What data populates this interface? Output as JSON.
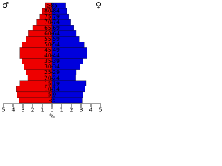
{
  "chart_data": {
    "type": "pyramid",
    "x_label": "%",
    "categories": [
      "≥85",
      "80-84",
      "75-79",
      "70-74",
      "65-69",
      "60-64",
      "55-59",
      "50-54",
      "45-49",
      "40-44",
      "35-39",
      "30-34",
      "25-29",
      "20-24",
      "15-19",
      "10-14",
      "5-9",
      "<5"
    ],
    "series": [
      {
        "name": "♂",
        "color": "#ee0000",
        "values": [
          0.7,
          1.0,
          1.3,
          1.6,
          2.0,
          2.4,
          2.7,
          3.1,
          3.3,
          3.3,
          3.1,
          2.9,
          2.7,
          2.5,
          3.3,
          3.7,
          3.6,
          3.4
        ]
      },
      {
        "name": "♀",
        "color": "#0000dd",
        "values": [
          1.4,
          1.5,
          1.7,
          1.9,
          2.2,
          2.5,
          2.8,
          3.3,
          3.6,
          3.6,
          3.2,
          2.9,
          2.5,
          2.4,
          3.5,
          3.4,
          3.2,
          3.1
        ]
      }
    ],
    "xlim": [
      0,
      5
    ],
    "xticks": [
      0,
      1,
      2,
      3,
      4,
      5
    ]
  }
}
